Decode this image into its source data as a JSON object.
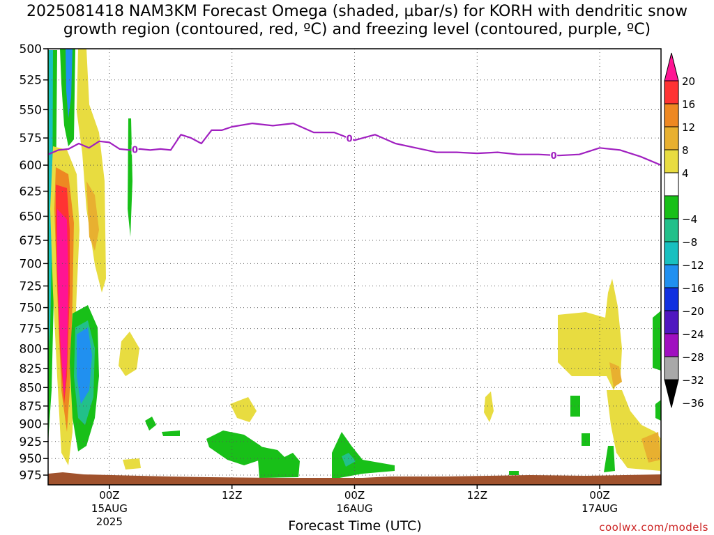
{
  "title_line1": "2025081418 NAM3KM Forecast Omega (shaded, µbar/s) for KORH with dendritic snow",
  "title_line2": "growth region (contoured, red, ºC) and freezing level (contoured, purple, ºC)",
  "credit": "coolwx.com/models",
  "colors": {
    "freezing_line": "#a020c0",
    "terrain": "#a0522d",
    "grid": "#555555"
  },
  "chart_data": {
    "type": "heatmap",
    "title": "2025081418 NAM3KM Forecast Omega (shaded, µbar/s) for KORH with dendritic snow growth region (contoured, red, ºC) and freezing level (contoured, purple, ºC)",
    "xlabel": "Forecast Time (UTC)",
    "ylabel": "",
    "yscale": "log",
    "yreversed": true,
    "ylim": [
      500,
      990
    ],
    "xlim_hours": [
      0,
      60
    ],
    "grid": true,
    "y_ticks": [
      "500",
      "525",
      "550",
      "575",
      "600",
      "625",
      "650",
      "675",
      "700",
      "725",
      "750",
      "775",
      "800",
      "825",
      "850",
      "875",
      "900",
      "925",
      "950",
      "975"
    ],
    "x_ticks": [
      {
        "hour": 6,
        "label": "00Z",
        "date": "15AUG",
        "year": "2025"
      },
      {
        "hour": 18,
        "label": "12Z",
        "date": "",
        "year": ""
      },
      {
        "hour": 30,
        "label": "00Z",
        "date": "16AUG",
        "year": ""
      },
      {
        "hour": 42,
        "label": "12Z",
        "date": "",
        "year": ""
      },
      {
        "hour": 54,
        "label": "00Z",
        "date": "17AUG",
        "year": ""
      }
    ],
    "colorbar": {
      "labels": [
        "20",
        "16",
        "12",
        "8",
        "4",
        "−4",
        "−8",
        "−12",
        "−16",
        "−20",
        "−24",
        "−28",
        "−32",
        "−36"
      ],
      "colors": [
        "#ff1493",
        "#ff3333",
        "#ee8822",
        "#e8b030",
        "#e8dc40",
        "#ffffff",
        "#18c018",
        "#22c08a",
        "#18c0c0",
        "#2090f0",
        "#1030e0",
        "#5018c0",
        "#a010c0",
        "#a8a8a8",
        "#000000"
      ]
    },
    "freezing_level": {
      "contour_label": "0",
      "hours": [
        0,
        1,
        2,
        3,
        4,
        5,
        6,
        7,
        8,
        9,
        10,
        11,
        12,
        13,
        14,
        15,
        16,
        17,
        18,
        20,
        22,
        24,
        26,
        28,
        30,
        32,
        34,
        36,
        38,
        40,
        42,
        44,
        46,
        48,
        50,
        52,
        54,
        56,
        58,
        60
      ],
      "levels": [
        590,
        586,
        585,
        580,
        584,
        578,
        579,
        585,
        586,
        585,
        586,
        585,
        586,
        572,
        575,
        580,
        568,
        568,
        565,
        562,
        564,
        562,
        570,
        570,
        577,
        572,
        580,
        584,
        588,
        588,
        589,
        588,
        590,
        590,
        591,
        590,
        584,
        586,
        592,
        600
      ]
    }
  }
}
